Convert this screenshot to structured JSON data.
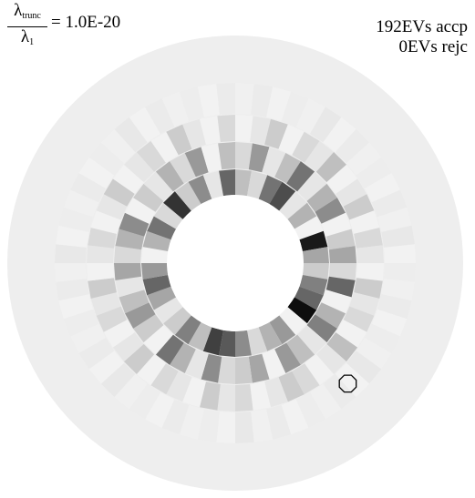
{
  "header": {
    "ratio_num": "λ",
    "ratio_num_sub": "trunc",
    "ratio_den": "λ",
    "ratio_den_sub": "1",
    "ratio_value": "= 1.0E-20",
    "accepted": "192EVs accp",
    "rejected": "0EVs rejc"
  },
  "colors": {
    "background": "#ffffff",
    "outer_disk": "#eeeeee",
    "marker_stroke": "#000000"
  },
  "rings": [
    {
      "ring": "inner",
      "cells": [
        0.25,
        0.15,
        0.55,
        0.7,
        0.1,
        0.3,
        0.05,
        0.9,
        0.35,
        0.2,
        0.5,
        0.6,
        0.95,
        0.05,
        0.4,
        0.3,
        0.15,
        0.45,
        0.65,
        0.75,
        0.25,
        0.5,
        0.2,
        0.1,
        0.35,
        0.6,
        0.4,
        0.05,
        0.3,
        0.55,
        0.15,
        0.8,
        0.2,
        0.45,
        0.1,
        0.6
      ]
    },
    {
      "ring": "middle",
      "cells": [
        0.15,
        0.4,
        0.1,
        0.25,
        0.55,
        0.1,
        0.3,
        0.45,
        0.05,
        0.2,
        0.35,
        0.15,
        0.6,
        0.05,
        0.3,
        0.5,
        0.1,
        0.25,
        0.4,
        0.05,
        0.35,
        0.2,
        0.15,
        0.45,
        0.1,
        0.3,
        0.55,
        0.05,
        0.2,
        0.4,
        0.25,
        0.1,
        0.35,
        0.15,
        0.3,
        0.45,
        0.05,
        0.2,
        0.1,
        0.3,
        0.15,
        0.4,
        0.05,
        0.25
      ]
    },
    {
      "ring": "outer",
      "cells": [
        0.05,
        0.1,
        0.2,
        0.05,
        0.15,
        0.1,
        0.25,
        0.05,
        0.1,
        0.2,
        0.05,
        0.15,
        0.1,
        0.05,
        0.2,
        0.1,
        0.15,
        0.05,
        0.25,
        0.1,
        0.05,
        0.15,
        0.2,
        0.1,
        0.05,
        0.15,
        0.1,
        0.2,
        0.05,
        0.1,
        0.15,
        0.05,
        0.2,
        0.1,
        0.05,
        0.15,
        0.1,
        0.2,
        0.05,
        0.1,
        0.15,
        0.05,
        0.1,
        0.2,
        0.05,
        0.1,
        0.15,
        0.05,
        0.2,
        0.1,
        0.05,
        0.15
      ]
    },
    {
      "ring": "rim",
      "cells": [
        0.06,
        0.08,
        0.05,
        0.07,
        0.06,
        0.09,
        0.05,
        0.08,
        0.06,
        0.07,
        0.05,
        0.08,
        0.06,
        0.09,
        0.05,
        0.07,
        0.06,
        0.08,
        0.05,
        0.07,
        0.06,
        0.09,
        0.05,
        0.08,
        0.06,
        0.07,
        0.05,
        0.08,
        0.06,
        0.09,
        0.05,
        0.07,
        0.06,
        0.08,
        0.05,
        0.07,
        0.06,
        0.09,
        0.05,
        0.08,
        0.06,
        0.07,
        0.05,
        0.08,
        0.06,
        0.09,
        0.05,
        0.07,
        0.06,
        0.08,
        0.05,
        0.07,
        0.06,
        0.09,
        0.05,
        0.08,
        0.06,
        0.07,
        0.05,
        0.08
      ]
    }
  ],
  "marker": {
    "shape": "octagon",
    "ring": "rim",
    "angle_deg": 47
  }
}
